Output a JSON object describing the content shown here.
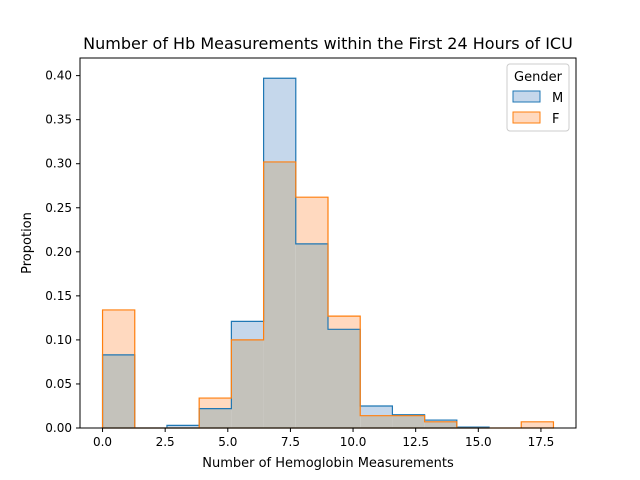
{
  "chart_data": {
    "type": "histogram",
    "title": "Number of Hb Measurements within the First 24 Hours of ICU",
    "xlabel": "Number of Hemoglobin Measurements",
    "ylabel": "Propotion",
    "xlim": [
      -0.9,
      18.9
    ],
    "ylim": [
      0,
      0.42
    ],
    "xticks": [
      0.0,
      2.5,
      5.0,
      7.5,
      10.0,
      12.5,
      15.0,
      17.5
    ],
    "xtick_labels": [
      "0.0",
      "2.5",
      "5.0",
      "7.5",
      "10.0",
      "12.5",
      "15.0",
      "17.5"
    ],
    "yticks": [
      0.0,
      0.05,
      0.1,
      0.15,
      0.2,
      0.25,
      0.3,
      0.35,
      0.4
    ],
    "ytick_labels": [
      "0.00",
      "0.05",
      "0.10",
      "0.15",
      "0.20",
      "0.25",
      "0.30",
      "0.35",
      "0.40"
    ],
    "bin_edges": [
      0.0,
      1.286,
      2.571,
      3.857,
      5.143,
      6.429,
      7.714,
      9.0,
      10.286,
      11.571,
      12.857,
      14.143,
      15.429,
      16.714,
      18.0
    ],
    "legend": {
      "title": "Gender",
      "placement": "upper right"
    },
    "grid": false,
    "series": [
      {
        "name": "M",
        "color": "#1f77b4",
        "fill": "#c5d7eb",
        "values": [
          0.083,
          0.0,
          0.003,
          0.022,
          0.121,
          0.397,
          0.209,
          0.112,
          0.025,
          0.015,
          0.009,
          0.001,
          0.0,
          0.0
        ]
      },
      {
        "name": "F",
        "color": "#ff7f0e",
        "fill": "#ffd9bf",
        "values": [
          0.134,
          0.0,
          0.0,
          0.034,
          0.1,
          0.302,
          0.262,
          0.127,
          0.014,
          0.014,
          0.007,
          0.0,
          0.0,
          0.007
        ]
      }
    ],
    "overlap_fill": "#c4c2bb"
  }
}
